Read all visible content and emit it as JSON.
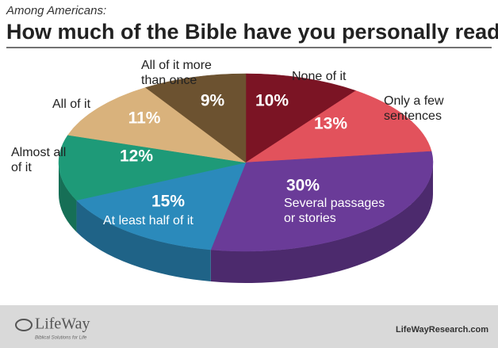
{
  "chart_data": {
    "type": "pie3d",
    "subtitle": "Among Americans:",
    "title": "How much of the Bible have you personally read?",
    "categories": [
      "None of it",
      "Only a few sentences",
      "Several passages or stories",
      "At least half of it",
      "Almost all of it",
      "All of it",
      "All of it more than once"
    ],
    "values": [
      10,
      13,
      30,
      15,
      12,
      11,
      9
    ],
    "value_labels": [
      "10%",
      "13%",
      "30%",
      "15%",
      "12%",
      "11%",
      "9%"
    ],
    "colors": [
      "#7b1424",
      "#e2525c",
      "#6a3b98",
      "#2b8abb",
      "#1e9a78",
      "#d9b27c",
      "#6c5230"
    ]
  },
  "footer": {
    "logo": "LifeWay",
    "tagline": "Biblical Solutions for Life",
    "url": "LifeWayResearch.com"
  }
}
